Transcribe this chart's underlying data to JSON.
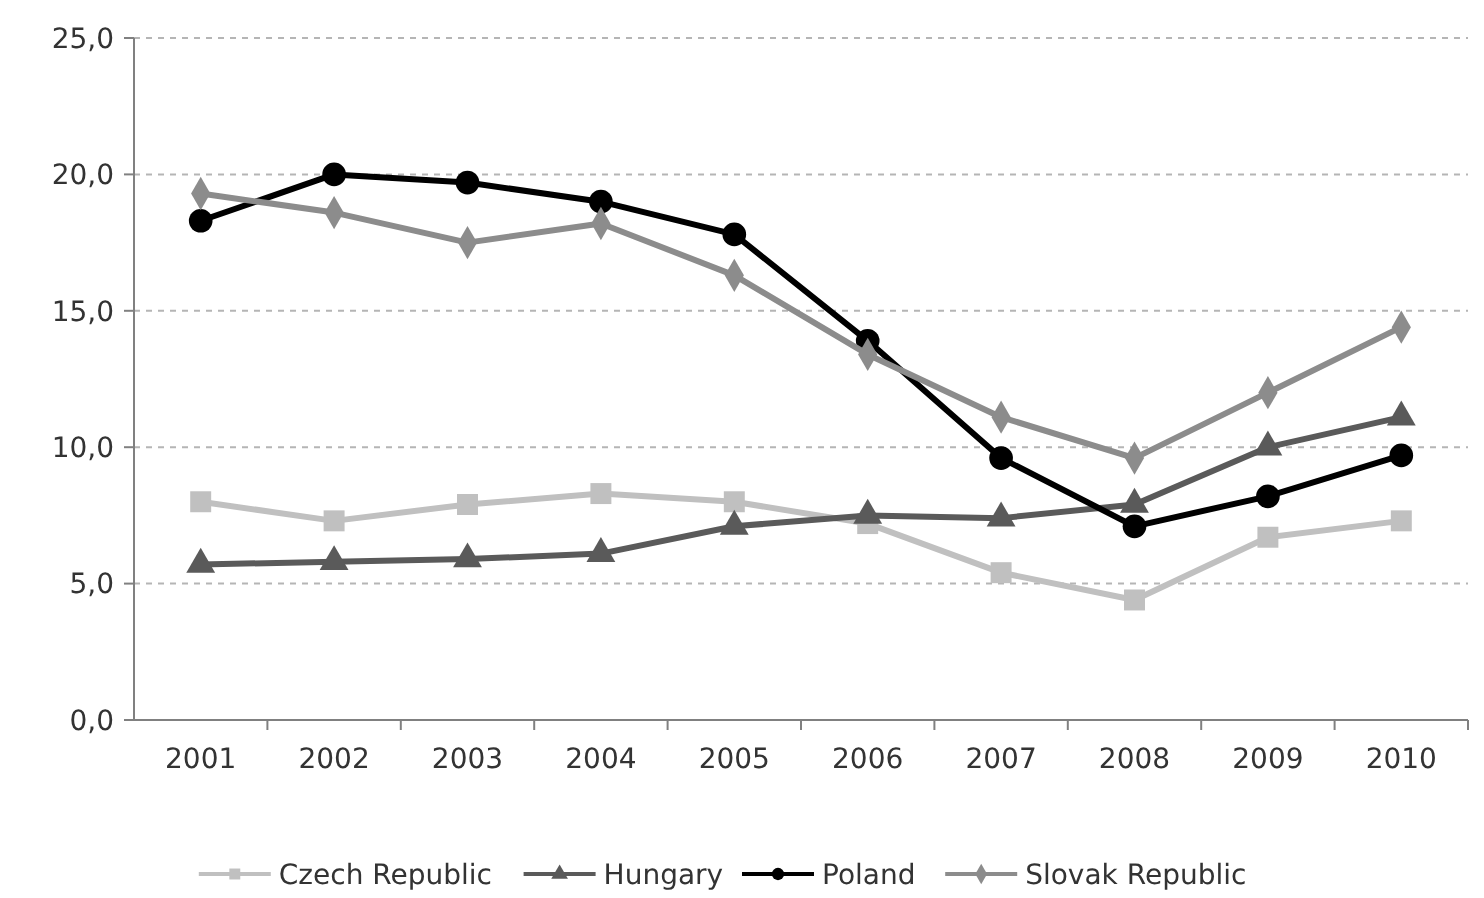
{
  "chart_data": {
    "type": "line",
    "categories": [
      "2001",
      "2002",
      "2003",
      "2004",
      "2005",
      "2006",
      "2007",
      "2008",
      "2009",
      "2010"
    ],
    "series": [
      {
        "name": "Czech Republic",
        "color": "#c0c0c0",
        "marker": "square",
        "values": [
          8.0,
          7.3,
          7.9,
          8.3,
          8.0,
          7.2,
          5.4,
          4.4,
          6.7,
          7.3
        ]
      },
      {
        "name": "Hungary",
        "color": "#5a5a5a",
        "marker": "triangle",
        "values": [
          5.7,
          5.8,
          5.9,
          6.1,
          7.1,
          7.5,
          7.4,
          7.9,
          10.0,
          11.1
        ]
      },
      {
        "name": "Poland",
        "color": "#000000",
        "marker": "circle",
        "values": [
          18.3,
          20.0,
          19.7,
          19.0,
          17.8,
          13.9,
          9.6,
          7.1,
          8.2,
          9.7
        ]
      },
      {
        "name": "Slovak Republic",
        "color": "#8c8c8c",
        "marker": "diamond",
        "values": [
          19.3,
          18.6,
          17.5,
          18.2,
          16.3,
          13.4,
          11.1,
          9.6,
          12.0,
          14.4
        ]
      }
    ],
    "ylim": [
      0,
      25
    ],
    "yticks": [
      {
        "value": 0,
        "label": "0,0"
      },
      {
        "value": 5,
        "label": "5,0"
      },
      {
        "value": 10,
        "label": "10,0"
      },
      {
        "value": 15,
        "label": "15,0"
      },
      {
        "value": 20,
        "label": "20,0"
      },
      {
        "value": 25,
        "label": "25,0"
      }
    ],
    "grid": "y",
    "legend": "bottom",
    "line_style": "solid"
  }
}
